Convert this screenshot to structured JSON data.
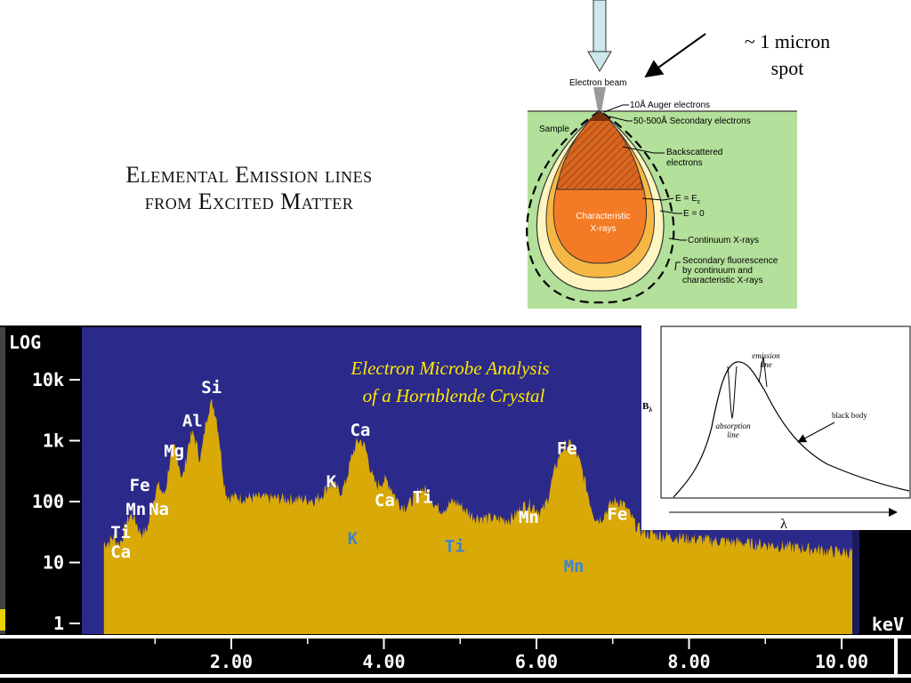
{
  "slide": {
    "title_line1": "Elemental Emission lines",
    "title_line2": "from Excited Matter",
    "spot_line1": "~ 1 micron",
    "spot_line2": "spot"
  },
  "diagram": {
    "electron_beam": "Electron beam",
    "sample": "Sample",
    "auger": "10Å Auger electrons",
    "secondary": "50-500Å Secondary electrons",
    "backscattered_1": "Backscattered",
    "backscattered_2": "electrons",
    "e_ec": "E = E",
    "e_ec_sub": "c",
    "e_zero": "E = 0",
    "char_1": "Characteristic",
    "char_2": "X-rays",
    "continuum": "Continuum X-rays",
    "fluor_1": "Secondary fluorescence",
    "fluor_2": "by continuum and",
    "fluor_3": "characteristic X-rays",
    "colors": {
      "green": "#b3e09a",
      "teardrop_outer": "#fef5c2",
      "continuum": "#f7b744",
      "characteristic": "#f47b25",
      "hatched": "#d8661e"
    }
  },
  "blackbody": {
    "y_label": "B",
    "y_label_sub": "λ",
    "x_label": "λ",
    "emission_1": "emission",
    "emission_2": "line",
    "absorption_1": "absorption",
    "absorption_2": "line",
    "black_body": "black body"
  },
  "spectrum": {
    "panel_title_1": "Electron Microbe Analysis",
    "panel_title_2": "of a Hornblende Crystal",
    "log_label": "LOG",
    "unit_label": "keV",
    "colors": {
      "background": "#2b2a8a",
      "fill": "#d9a908",
      "title": "#ffe800",
      "label": "#ffffff",
      "secondary_label": "#3b84d4"
    }
  },
  "chart_data": {
    "type": "area",
    "title": "Electron Microbe Analysis of a Hornblende Crystal",
    "xlabel": "keV",
    "ylabel": "LOG",
    "xlim": [
      0.3,
      10.2
    ],
    "ylim": [
      1,
      100000
    ],
    "yscale": "log",
    "x_ticks": [
      2.0,
      4.0,
      6.0,
      8.0,
      10.0
    ],
    "x_tick_labels": [
      "2.00",
      "4.00",
      "6.00",
      "8.00",
      "10.00"
    ],
    "y_ticks": [
      1,
      10,
      100,
      1000,
      10000
    ],
    "y_tick_labels": [
      "1",
      "10",
      "100",
      "1k",
      "10k"
    ],
    "background": {
      "x": [
        0.35,
        0.6,
        1.0,
        1.5,
        2.0,
        3.0,
        4.0,
        5.0,
        6.0,
        7.0,
        8.0,
        9.0,
        10.0
      ],
      "y": [
        12,
        20,
        40,
        90,
        120,
        110,
        90,
        60,
        45,
        35,
        25,
        20,
        15
      ]
    },
    "peaks": [
      {
        "element": "Ca",
        "x": 0.34,
        "y": 12
      },
      {
        "element": "Ti",
        "x": 0.45,
        "y": 15
      },
      {
        "element": "Mn",
        "x": 0.64,
        "y": 25
      },
      {
        "element": "Fe",
        "x": 0.71,
        "y": 35
      },
      {
        "element": "Na",
        "x": 1.04,
        "y": 150
      },
      {
        "element": "Mg",
        "x": 1.25,
        "y": 700
      },
      {
        "element": "Al",
        "x": 1.49,
        "y": 1200
      },
      {
        "element": "Si",
        "x": 1.74,
        "y": 4000
      },
      {
        "element": "K",
        "x": 3.31,
        "y": 120
      },
      {
        "element": "Ca",
        "x": 3.69,
        "y": 900
      },
      {
        "element": "K",
        "x": 3.59,
        "y": 110
      },
      {
        "element": "Ca",
        "x": 4.01,
        "y": 160
      },
      {
        "element": "Ti",
        "x": 4.51,
        "y": 110
      },
      {
        "element": "Ti",
        "x": 4.93,
        "y": 55
      },
      {
        "element": "Mn",
        "x": 5.9,
        "y": 60
      },
      {
        "element": "Fe",
        "x": 6.4,
        "y": 700
      },
      {
        "element": "Mn",
        "x": 6.49,
        "y": 200
      },
      {
        "element": "Fe",
        "x": 7.06,
        "y": 80
      }
    ],
    "labels": [
      {
        "text": "Ca",
        "x": 0.55,
        "y": 12,
        "color": "white"
      },
      {
        "text": "Ti",
        "x": 0.55,
        "y": 25,
        "color": "white"
      },
      {
        "text": "Mn",
        "x": 0.75,
        "y": 60,
        "color": "white"
      },
      {
        "text": "Fe",
        "x": 0.8,
        "y": 150,
        "color": "white"
      },
      {
        "text": "Na",
        "x": 1.05,
        "y": 60,
        "color": "white"
      },
      {
        "text": "Mg",
        "x": 1.25,
        "y": 550,
        "color": "white"
      },
      {
        "text": "Al",
        "x": 1.49,
        "y": 1700,
        "color": "white"
      },
      {
        "text": "Si",
        "x": 1.74,
        "y": 6000,
        "color": "white"
      },
      {
        "text": "K",
        "x": 3.31,
        "y": 170,
        "color": "white"
      },
      {
        "text": "Ca",
        "x": 3.69,
        "y": 1200,
        "color": "white"
      },
      {
        "text": "Ca",
        "x": 4.01,
        "y": 85,
        "color": "white"
      },
      {
        "text": "Ti",
        "x": 4.51,
        "y": 95,
        "color": "white"
      },
      {
        "text": "K",
        "x": 3.59,
        "y": 20,
        "color": "blue"
      },
      {
        "text": "Ti",
        "x": 4.93,
        "y": 15,
        "color": "blue"
      },
      {
        "text": "Mn",
        "x": 5.9,
        "y": 45,
        "color": "white"
      },
      {
        "text": "Fe",
        "x": 6.4,
        "y": 600,
        "color": "white"
      },
      {
        "text": "Fe",
        "x": 7.06,
        "y": 50,
        "color": "white"
      },
      {
        "text": "Mn",
        "x": 6.49,
        "y": 7,
        "color": "blue"
      }
    ]
  }
}
